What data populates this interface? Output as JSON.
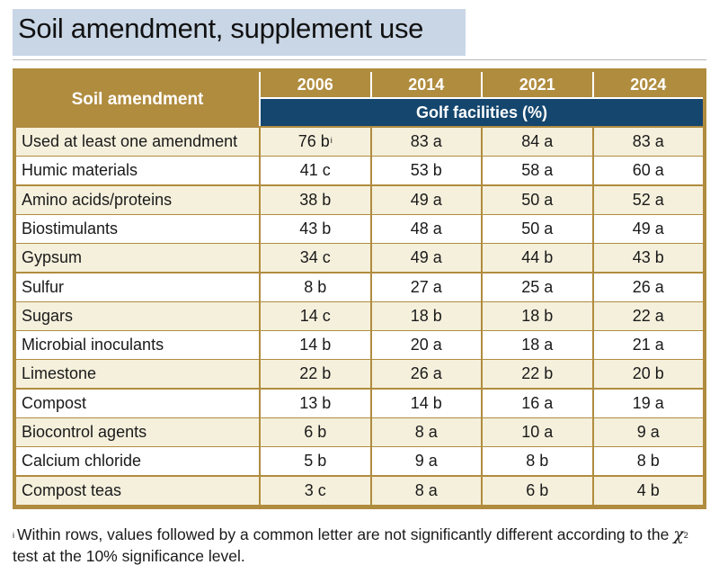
{
  "title": "Soil amendment, supplement use",
  "colors": {
    "header_gold": "#b08c3f",
    "header_blue": "#14466e",
    "title_band": "#c9d6e6",
    "stripe": "#f5f0dc"
  },
  "table": {
    "row_header": "Soil amendment",
    "years": [
      "2006",
      "2014",
      "2021",
      "2024"
    ],
    "subheader": "Golf facilities (%)",
    "rows": [
      {
        "name": "Used at least one amendment",
        "values": [
          "76 b",
          "83 a",
          "84 a",
          "83 a"
        ],
        "footnote_mark": "i"
      },
      {
        "name": "Humic materials",
        "values": [
          "41 c",
          "53 b",
          "58 a",
          "60 a"
        ]
      },
      {
        "name": "Amino acids/proteins",
        "values": [
          "38 b",
          "49 a",
          "50 a",
          "52 a"
        ]
      },
      {
        "name": "Biostimulants",
        "values": [
          "43 b",
          "48 a",
          "50 a",
          "49 a"
        ]
      },
      {
        "name": "Gypsum",
        "values": [
          "34 c",
          "49 a",
          "44 b",
          "43 b"
        ]
      },
      {
        "name": "Sulfur",
        "values": [
          "8 b",
          "27 a",
          "25 a",
          "26 a"
        ]
      },
      {
        "name": "Sugars",
        "values": [
          "14 c",
          "18 b",
          "18 b",
          "22 a"
        ]
      },
      {
        "name": "Microbial inoculants",
        "values": [
          "14 b",
          "20 a",
          "18 a",
          "21 a"
        ]
      },
      {
        "name": "Limestone",
        "values": [
          "22 b",
          "26 a",
          "22 b",
          "20 b"
        ]
      },
      {
        "name": "Compost",
        "values": [
          "13 b",
          "14 b",
          "16 a",
          "19 a"
        ]
      },
      {
        "name": "Biocontrol agents",
        "values": [
          "6 b",
          "8 a",
          "10 a",
          "9 a"
        ]
      },
      {
        "name": "Calcium chloride",
        "values": [
          "5 b",
          "9 a",
          "8 b",
          "8 b"
        ]
      },
      {
        "name": "Compost teas",
        "values": [
          "3 c",
          "8 a",
          "6 b",
          "4 b"
        ]
      }
    ]
  },
  "footnote": {
    "mark": "i",
    "text_before": "Within rows, values followed by a common letter are not significantly different according to the ",
    "symbol": "χ",
    "symbol_sup": "2",
    "text_after": " test at the 10% significance level."
  }
}
